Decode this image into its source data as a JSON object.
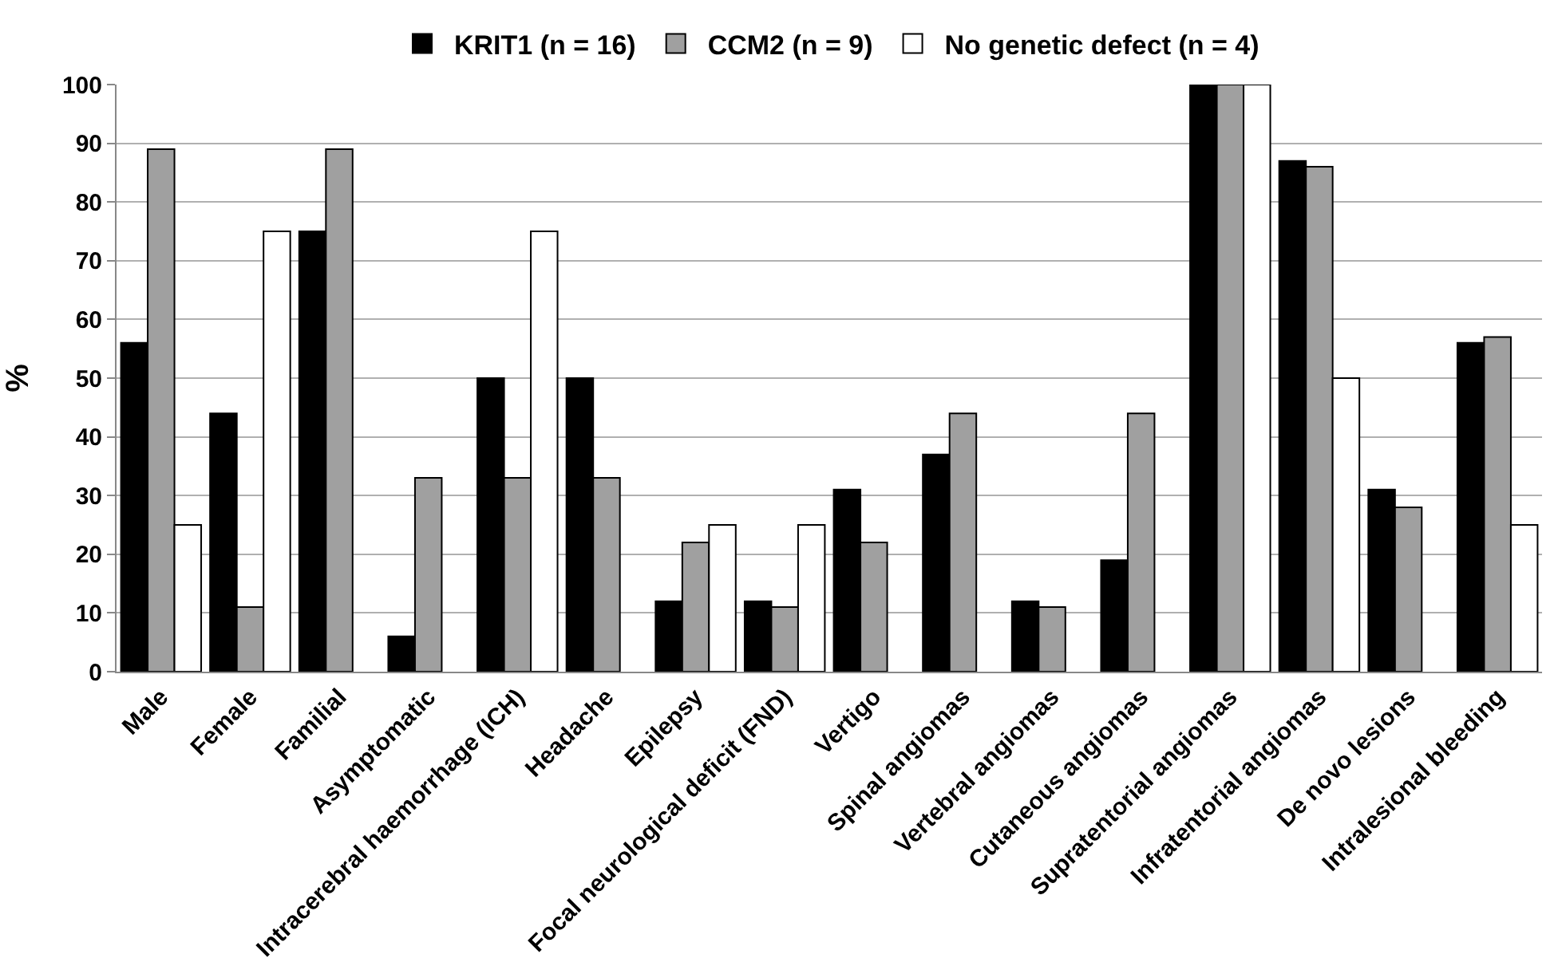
{
  "chart_data": {
    "type": "bar",
    "ylabel": "%",
    "categories": [
      "Male",
      "Female",
      "Familial",
      "Asymptomatic",
      "Intracerebral haemorrhage (ICH)",
      "Headache",
      "Epilepsy",
      "Focal neurological deficit (FND)",
      "Vertigo",
      "Spinal angiomas",
      "Vertebral angiomas",
      "Cutaneous angiomas",
      "Supratentorial angiomas",
      "Infratentorial angiomas",
      "De novo lesions",
      "Intralesional bleeding"
    ],
    "series": [
      {
        "name": "KRIT1 (n = 16)",
        "color": "#000000",
        "values": [
          56,
          44,
          75,
          6,
          50,
          50,
          12,
          12,
          31,
          37,
          12,
          19,
          100,
          87,
          31,
          56
        ]
      },
      {
        "name": "CCM2 (n = 9)",
        "color": "#a0a0a0",
        "values": [
          89,
          11,
          89,
          33,
          33,
          33,
          22,
          11,
          22,
          44,
          11,
          44,
          100,
          86,
          28,
          57
        ]
      },
      {
        "name": "No genetic defect (n = 4)",
        "color": "#ffffff",
        "values": [
          25,
          75,
          null,
          null,
          75,
          null,
          25,
          25,
          null,
          null,
          null,
          null,
          100,
          50,
          null,
          25
        ]
      }
    ],
    "ylim": [
      0,
      100
    ],
    "yticks": [
      0,
      10,
      20,
      30,
      40,
      50,
      60,
      70,
      80,
      90,
      100
    ],
    "grid": "y",
    "legend": "top"
  }
}
